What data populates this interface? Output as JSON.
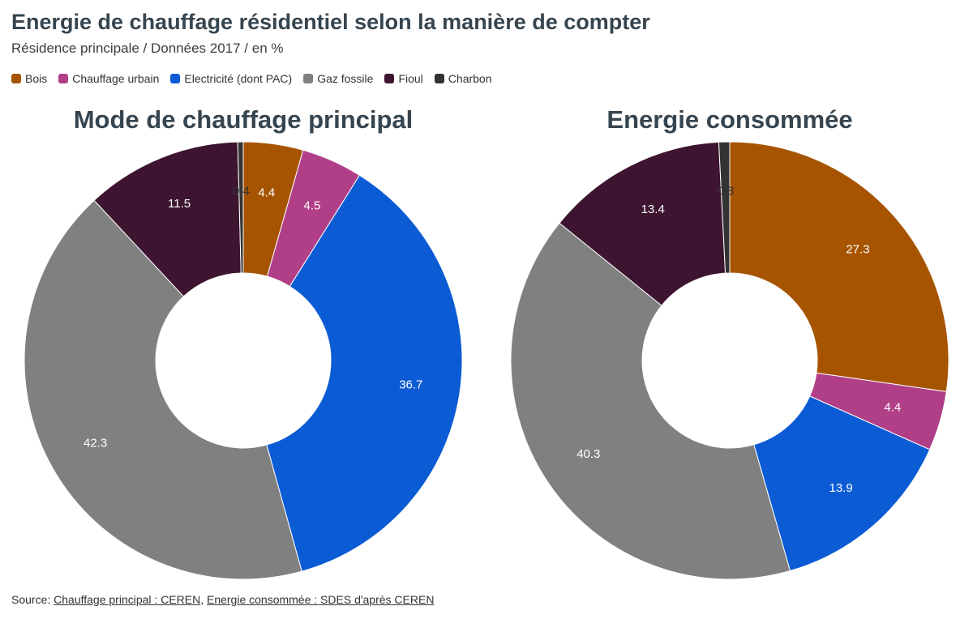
{
  "header": {
    "title": "Energie de chauffage résidentiel selon la manière de compter",
    "subtitle": "Résidence principale / Données 2017 / en %"
  },
  "legend": [
    {
      "label": "Bois",
      "color": "#a65400"
    },
    {
      "label": "Chauffage urbain",
      "color": "#b13f88"
    },
    {
      "label": "Electricité (dont PAC)",
      "color": "#0b5bd4"
    },
    {
      "label": "Gaz fossile",
      "color": "#808080"
    },
    {
      "label": "Fioul",
      "color": "#3d1530"
    },
    {
      "label": "Charbon",
      "color": "#333333"
    }
  ],
  "chart_data": [
    {
      "type": "pie",
      "title": "Mode de chauffage principal",
      "categories": [
        "Bois",
        "Chauffage urbain",
        "Electricité (dont PAC)",
        "Gaz fossile",
        "Fioul",
        "Charbon"
      ],
      "values": [
        4.4,
        4.5,
        36.7,
        42.3,
        11.5,
        0.4
      ],
      "labels": [
        "4.4",
        "4.5",
        "36.7",
        "42.3",
        "11.5",
        "0.4"
      ],
      "donut": true,
      "start": "top, clockwise"
    },
    {
      "type": "pie",
      "title": "Energie consommée",
      "categories": [
        "Bois",
        "Chauffage urbain",
        "Electricité (dont PAC)",
        "Gaz fossile",
        "Fioul",
        "Charbon"
      ],
      "values": [
        27.3,
        4.4,
        13.9,
        40.3,
        13.4,
        0.8
      ],
      "labels": [
        "27.3",
        "4.4",
        "13.9",
        "40.3",
        "13.4",
        "0.8"
      ],
      "donut": true,
      "start": "top, clockwise"
    }
  ],
  "footer": {
    "source_prefix": "Source: ",
    "link1": "Chauffage principal : CEREN",
    "separator": ", ",
    "link2": "Energie consommée : SDES d'après CEREN"
  }
}
